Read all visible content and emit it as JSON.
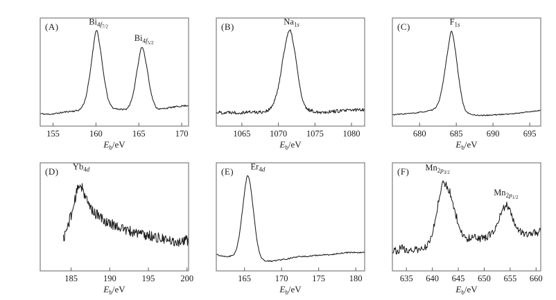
{
  "figure": {
    "type": "xps-spectra-grid",
    "line_color": "#1c1c1c",
    "border_color": "#7d7d7d",
    "tick_color": "#5a5a5a",
    "text_color": "#1a1a1a",
    "background": "#ffffff"
  },
  "chart_data": [
    {
      "type": "line",
      "panel_label": "(A)",
      "xlabel": {
        "symbol": "E",
        "subscript": "b",
        "unit": "/eV"
      },
      "xlim": [
        153.5,
        170.8
      ],
      "xticks": [
        155,
        160,
        165,
        170
      ],
      "ylim": [
        0,
        1
      ],
      "grid": false,
      "legend": null,
      "noise": 0.007,
      "seed": 11,
      "annotations": [
        {
          "element": "Bi",
          "orbital_n": "4",
          "orbital_l": "f",
          "j": "7/2",
          "x": 160.3,
          "y": 0.94
        },
        {
          "element": "Bi",
          "orbital_n": "4",
          "orbital_l": "f",
          "j": "5/2",
          "x": 165.6,
          "y": 0.79
        }
      ],
      "series": [
        {
          "name": "Bi 4f spectrum",
          "points": [
            [
              153.5,
              0.115
            ],
            [
              154.3,
              0.11
            ],
            [
              155.2,
              0.115
            ],
            [
              156.0,
              0.125
            ],
            [
              156.8,
              0.135
            ],
            [
              157.5,
              0.14
            ],
            [
              158.2,
              0.16
            ],
            [
              158.8,
              0.26
            ],
            [
              159.3,
              0.48
            ],
            [
              159.7,
              0.73
            ],
            [
              160.05,
              0.89
            ],
            [
              160.45,
              0.74
            ],
            [
              160.9,
              0.48
            ],
            [
              161.4,
              0.26
            ],
            [
              161.9,
              0.175
            ],
            [
              162.5,
              0.16
            ],
            [
              163.1,
              0.155
            ],
            [
              163.7,
              0.17
            ],
            [
              164.3,
              0.28
            ],
            [
              164.8,
              0.52
            ],
            [
              165.35,
              0.73
            ],
            [
              165.9,
              0.56
            ],
            [
              166.4,
              0.32
            ],
            [
              166.9,
              0.19
            ],
            [
              167.4,
              0.16
            ],
            [
              168.1,
              0.165
            ],
            [
              169.0,
              0.175
            ],
            [
              169.9,
              0.185
            ],
            [
              170.8,
              0.19
            ]
          ]
        }
      ]
    },
    {
      "type": "line",
      "panel_label": "(B)",
      "xlabel": {
        "symbol": "E",
        "subscript": "b",
        "unit": "/eV"
      },
      "xlim": [
        1061.5,
        1081.8
      ],
      "xticks": [
        1065,
        1070,
        1075,
        1080
      ],
      "ylim": [
        0,
        1
      ],
      "grid": false,
      "legend": null,
      "noise": 0.016,
      "seed": 22,
      "annotations": [
        {
          "element": "Na",
          "orbital_n": "1",
          "orbital_l": "s",
          "j": "",
          "x": 1071.8,
          "y": 0.94
        }
      ],
      "series": [
        {
          "name": "Na 1s spectrum",
          "points": [
            [
              1061.5,
              0.13
            ],
            [
              1062.5,
              0.125
            ],
            [
              1063.5,
              0.13
            ],
            [
              1064.5,
              0.125
            ],
            [
              1065.5,
              0.13
            ],
            [
              1066.5,
              0.13
            ],
            [
              1067.5,
              0.13
            ],
            [
              1068.3,
              0.14
            ],
            [
              1069.0,
              0.17
            ],
            [
              1069.7,
              0.28
            ],
            [
              1070.3,
              0.48
            ],
            [
              1070.8,
              0.7
            ],
            [
              1071.3,
              0.85
            ],
            [
              1071.7,
              0.87
            ],
            [
              1072.1,
              0.74
            ],
            [
              1072.6,
              0.52
            ],
            [
              1073.1,
              0.3
            ],
            [
              1073.6,
              0.185
            ],
            [
              1074.2,
              0.15
            ],
            [
              1075.0,
              0.135
            ],
            [
              1076.0,
              0.13
            ],
            [
              1077.2,
              0.135
            ],
            [
              1078.4,
              0.14
            ],
            [
              1079.6,
              0.145
            ],
            [
              1080.6,
              0.15
            ],
            [
              1081.8,
              0.155
            ]
          ]
        }
      ]
    },
    {
      "type": "line",
      "panel_label": "(C)",
      "xlabel": {
        "symbol": "E",
        "subscript": "b",
        "unit": "/eV"
      },
      "xlim": [
        676.3,
        696.5
      ],
      "xticks": [
        680,
        685,
        690,
        695
      ],
      "ylim": [
        0,
        1
      ],
      "grid": false,
      "legend": null,
      "noise": 0.005,
      "seed": 33,
      "annotations": [
        {
          "element": "F",
          "orbital_n": "1",
          "orbital_l": "s",
          "j": "",
          "x": 684.8,
          "y": 0.94
        }
      ],
      "series": [
        {
          "name": "F 1s spectrum",
          "points": [
            [
              676.3,
              0.105
            ],
            [
              677.3,
              0.11
            ],
            [
              678.3,
              0.115
            ],
            [
              679.3,
              0.12
            ],
            [
              680.3,
              0.13
            ],
            [
              681.2,
              0.14
            ],
            [
              682.0,
              0.16
            ],
            [
              682.7,
              0.24
            ],
            [
              683.3,
              0.45
            ],
            [
              683.9,
              0.72
            ],
            [
              684.35,
              0.875
            ],
            [
              684.8,
              0.73
            ],
            [
              685.3,
              0.47
            ],
            [
              685.8,
              0.25
            ],
            [
              686.3,
              0.14
            ],
            [
              687.0,
              0.11
            ],
            [
              688.0,
              0.1
            ],
            [
              689.2,
              0.1
            ],
            [
              690.4,
              0.105
            ],
            [
              691.6,
              0.11
            ],
            [
              692.8,
              0.115
            ],
            [
              694.0,
              0.125
            ],
            [
              695.2,
              0.135
            ],
            [
              696.5,
              0.145
            ]
          ]
        }
      ]
    },
    {
      "type": "line",
      "panel_label": "(D)",
      "xlabel": {
        "symbol": "E",
        "subscript": "b",
        "unit": "/eV"
      },
      "xlim": [
        181.0,
        200.2
      ],
      "xticks": [
        185,
        190,
        195,
        200
      ],
      "ylim": [
        0,
        1
      ],
      "grid": false,
      "legend": null,
      "noise": 0.05,
      "seed": 44,
      "annotations": [
        {
          "element": "Yb",
          "orbital_n": "4",
          "orbital_l": "d",
          "j": "",
          "x": 186.3,
          "y": 0.94
        }
      ],
      "series": [
        {
          "name": "Yb 4d spectrum",
          "points": [
            [
              184.0,
              0.3
            ],
            [
              184.3,
              0.36
            ],
            [
              184.6,
              0.42
            ],
            [
              184.9,
              0.5
            ],
            [
              185.2,
              0.56
            ],
            [
              185.5,
              0.66
            ],
            [
              185.8,
              0.74
            ],
            [
              186.1,
              0.8
            ],
            [
              186.4,
              0.78
            ],
            [
              186.7,
              0.72
            ],
            [
              187.0,
              0.65
            ],
            [
              187.4,
              0.6
            ],
            [
              187.8,
              0.56
            ],
            [
              188.3,
              0.52
            ],
            [
              188.9,
              0.49
            ],
            [
              189.6,
              0.45
            ],
            [
              190.4,
              0.43
            ],
            [
              191.2,
              0.41
            ],
            [
              192.0,
              0.38
            ],
            [
              192.9,
              0.36
            ],
            [
              193.8,
              0.35
            ],
            [
              194.7,
              0.33
            ],
            [
              195.6,
              0.32
            ],
            [
              196.5,
              0.3
            ],
            [
              197.4,
              0.28
            ],
            [
              198.3,
              0.27
            ],
            [
              199.2,
              0.275
            ],
            [
              200.2,
              0.285
            ]
          ]
        }
      ]
    },
    {
      "type": "line",
      "panel_label": "(E)",
      "xlabel": {
        "symbol": "E",
        "subscript": "b",
        "unit": "/eV"
      },
      "xlim": [
        161.2,
        181.2
      ],
      "xticks": [
        165,
        170,
        175,
        180
      ],
      "ylim": [
        0,
        1
      ],
      "grid": false,
      "legend": null,
      "noise": 0.006,
      "seed": 55,
      "annotations": [
        {
          "element": "Er",
          "orbital_n": "4",
          "orbital_l": "d",
          "j": "",
          "x": 166.8,
          "y": 0.94
        }
      ],
      "series": [
        {
          "name": "Er 4d spectrum",
          "points": [
            [
              161.2,
              0.15
            ],
            [
              161.9,
              0.14
            ],
            [
              162.6,
              0.135
            ],
            [
              163.2,
              0.14
            ],
            [
              163.8,
              0.18
            ],
            [
              164.3,
              0.33
            ],
            [
              164.8,
              0.6
            ],
            [
              165.2,
              0.82
            ],
            [
              165.5,
              0.88
            ],
            [
              165.9,
              0.74
            ],
            [
              166.3,
              0.5
            ],
            [
              166.7,
              0.28
            ],
            [
              167.1,
              0.15
            ],
            [
              167.6,
              0.1
            ],
            [
              168.3,
              0.09
            ],
            [
              169.1,
              0.095
            ],
            [
              170.0,
              0.105
            ],
            [
              171.0,
              0.115
            ],
            [
              172.2,
              0.13
            ],
            [
              173.5,
              0.135
            ],
            [
              175.0,
              0.145
            ],
            [
              176.5,
              0.15
            ],
            [
              178.0,
              0.165
            ],
            [
              179.5,
              0.17
            ],
            [
              181.2,
              0.17
            ]
          ]
        }
      ]
    },
    {
      "type": "line",
      "panel_label": "(F)",
      "xlabel": {
        "symbol": "E",
        "subscript": "b",
        "unit": "/eV"
      },
      "xlim": [
        632.3,
        660.9
      ],
      "xticks": [
        635,
        640,
        645,
        650,
        655,
        660
      ],
      "ylim": [
        0,
        1
      ],
      "grid": false,
      "legend": null,
      "noise": 0.035,
      "seed": 66,
      "annotations": [
        {
          "element": "Mn",
          "orbital_n": "2",
          "orbital_l": "p",
          "j": "3/2",
          "x": 641.0,
          "y": 0.93
        },
        {
          "element": "Mn",
          "orbital_n": "2",
          "orbital_l": "p",
          "j": "1/2",
          "x": 654.2,
          "y": 0.7
        }
      ],
      "series": [
        {
          "name": "Mn 2p spectrum",
          "points": [
            [
              632.3,
              0.2
            ],
            [
              633.2,
              0.19
            ],
            [
              634.1,
              0.21
            ],
            [
              635.0,
              0.19
            ],
            [
              635.9,
              0.205
            ],
            [
              636.8,
              0.19
            ],
            [
              637.7,
              0.2
            ],
            [
              638.6,
              0.22
            ],
            [
              639.4,
              0.26
            ],
            [
              640.1,
              0.36
            ],
            [
              640.7,
              0.52
            ],
            [
              641.3,
              0.68
            ],
            [
              641.9,
              0.79
            ],
            [
              642.4,
              0.81
            ],
            [
              643.0,
              0.77
            ],
            [
              643.6,
              0.7
            ],
            [
              644.3,
              0.57
            ],
            [
              645.0,
              0.44
            ],
            [
              645.7,
              0.35
            ],
            [
              646.5,
              0.31
            ],
            [
              647.4,
              0.3
            ],
            [
              648.3,
              0.31
            ],
            [
              649.2,
              0.3
            ],
            [
              650.1,
              0.31
            ],
            [
              651.0,
              0.33
            ],
            [
              651.9,
              0.38
            ],
            [
              652.7,
              0.46
            ],
            [
              653.5,
              0.55
            ],
            [
              654.2,
              0.61
            ],
            [
              654.9,
              0.57
            ],
            [
              655.6,
              0.48
            ],
            [
              656.4,
              0.4
            ],
            [
              657.2,
              0.36
            ],
            [
              658.1,
              0.34
            ],
            [
              659.0,
              0.355
            ],
            [
              660.0,
              0.35
            ],
            [
              660.9,
              0.37
            ]
          ]
        }
      ]
    }
  ]
}
